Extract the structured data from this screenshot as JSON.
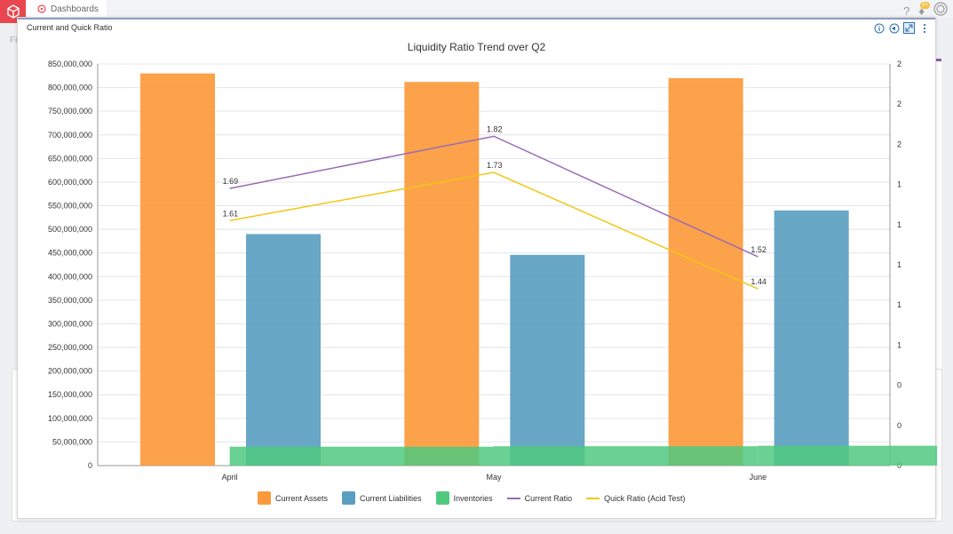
{
  "app": {
    "nav_tab_label": "Dashboards",
    "notification_badge": "9+",
    "bg_letter": "Fi"
  },
  "modal": {
    "title": "Current and Quick Ratio",
    "tools": [
      "info-icon",
      "speaker-icon",
      "expand-icon",
      "more-icon"
    ]
  },
  "colors": {
    "current_assets": "#fb9a3c",
    "current_liabilities": "#5b9fc0",
    "inventories": "#4fc97e",
    "current_ratio": "#9b6bb4",
    "quick_ratio": "#f2c715"
  },
  "chart_data": {
    "type": "bar",
    "title": "Liquidity Ratio Trend over Q2",
    "categories": [
      "April",
      "May",
      "June"
    ],
    "ylim": [
      0,
      850000000
    ],
    "yticks": [
      "0",
      "50,000,000",
      "100,000,000",
      "150,000,000",
      "200,000,000",
      "250,000,000",
      "300,000,000",
      "350,000,000",
      "400,000,000",
      "450,000,000",
      "500,000,000",
      "550,000,000",
      "600,000,000",
      "650,000,000",
      "700,000,000",
      "750,000,000",
      "800,000,000",
      "850,000,000"
    ],
    "y2ticks": [
      "0",
      "0",
      "0",
      "1",
      "1",
      "1",
      "1",
      "1",
      "2",
      "2",
      "2"
    ],
    "series": [
      {
        "name": "Current Assets",
        "kind": "bar",
        "values": [
          830000000,
          812000000,
          820000000
        ]
      },
      {
        "name": "Current Liabilities",
        "kind": "bar",
        "values": [
          490000000,
          446000000,
          540000000
        ]
      },
      {
        "name": "Inventories",
        "kind": "bar",
        "values": [
          40000000,
          41000000,
          42000000
        ]
      },
      {
        "name": "Current Ratio",
        "kind": "line",
        "axis": "right",
        "values": [
          1.69,
          1.82,
          1.52
        ],
        "labels": [
          "1.69",
          "1.82",
          "1.52"
        ]
      },
      {
        "name": "Quick Ratio (Acid Test)",
        "kind": "line",
        "axis": "right",
        "values": [
          1.61,
          1.73,
          1.44
        ],
        "labels": [
          "1.61",
          "1.73",
          "1.44"
        ]
      }
    ],
    "legend_position": "bottom",
    "grid": true
  }
}
